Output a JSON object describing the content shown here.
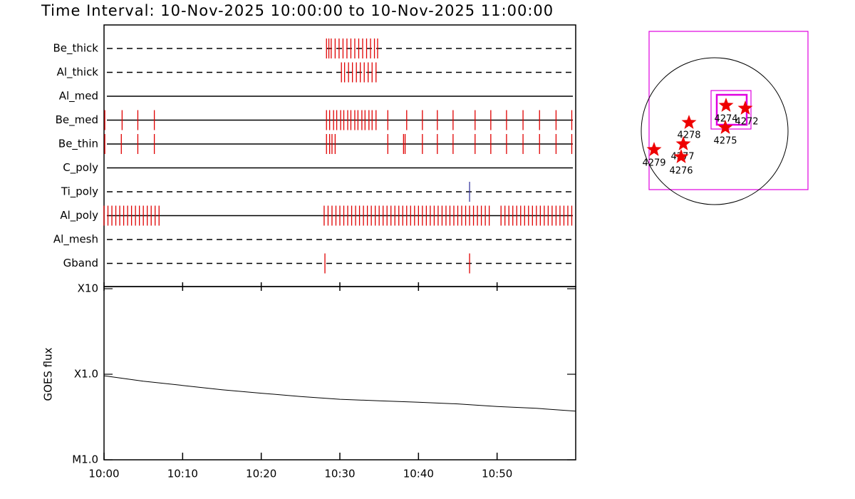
{
  "chart_data": [
    {
      "type": "timeline",
      "title": "Time Interval: 10-Nov-2025 10:00:00 to 10-Nov-2025 11:00:00",
      "xlim": [
        0,
        60
      ],
      "rows": [
        {
          "name": "Be_thick",
          "style": "dashed",
          "color": "#e00000",
          "events": [
            28.3,
            28.6,
            28.9,
            29.4,
            29.9,
            30.4,
            30.9,
            31.4,
            31.9,
            32.4,
            32.9,
            33.4,
            33.9,
            34.4,
            34.8
          ]
        },
        {
          "name": "Al_thick",
          "style": "dashed",
          "color": "#e00000",
          "events": [
            30.2,
            30.6,
            31.1,
            31.6,
            32.1,
            32.6,
            33.1,
            33.6,
            34.1,
            34.6
          ]
        },
        {
          "name": "Al_med",
          "style": "solid",
          "color": "#e00000",
          "events": []
        },
        {
          "name": "Be_med",
          "style": "solid",
          "color": "#e00000",
          "events": [
            0.1,
            2.3,
            4.3,
            6.4,
            28.3,
            28.7,
            29.2,
            29.6,
            30.1,
            30.5,
            31.0,
            31.4,
            31.9,
            32.3,
            32.8,
            33.2,
            33.7,
            34.1,
            34.6,
            36.1,
            38.5,
            40.5,
            42.4,
            44.4,
            47.2,
            49.2,
            51.2,
            53.3,
            55.4,
            57.5,
            59.5
          ]
        },
        {
          "name": "Be_thin",
          "style": "solid",
          "color": "#e00000",
          "events": [
            0.1,
            2.2,
            4.3,
            6.4,
            28.3,
            28.7,
            29.0,
            29.4,
            36.1,
            38.1,
            38.3,
            40.5,
            42.4,
            44.4,
            47.2,
            49.2,
            51.2,
            53.3,
            55.4,
            57.5,
            59.5
          ]
        },
        {
          "name": "C_poly",
          "style": "solid",
          "color": "#e00000",
          "events": []
        },
        {
          "name": "Ti_poly",
          "style": "dashed",
          "color": "#3a3aa0",
          "events": [
            46.5
          ]
        },
        {
          "name": "Al_poly",
          "style": "solid",
          "color": "#e00000",
          "events": [
            0,
            0.5,
            1,
            1.5,
            2,
            2.5,
            3,
            3.5,
            4,
            4.5,
            5,
            5.5,
            6,
            6.5,
            7,
            28,
            28.5,
            29,
            29.5,
            30,
            30.5,
            31,
            31.5,
            32,
            32.5,
            33,
            33.5,
            34,
            34.5,
            35,
            35.5,
            36,
            36.5,
            37,
            37.5,
            38,
            38.5,
            39,
            39.5,
            40,
            40.5,
            41,
            41.5,
            42,
            42.5,
            43,
            43.5,
            44,
            44.5,
            45,
            45.5,
            46,
            46.5,
            47,
            47.5,
            48,
            48.5,
            49,
            50.5,
            51,
            51.5,
            52,
            52.5,
            53,
            53.5,
            54,
            54.5,
            55,
            55.5,
            56,
            56.5,
            57,
            57.5,
            58,
            58.5,
            59,
            59.5
          ]
        },
        {
          "name": "Al_mesh",
          "style": "dashed",
          "color": "#e00000",
          "events": []
        },
        {
          "name": "Gband",
          "style": "dashed",
          "color": "#e00000",
          "events": [
            28.1,
            46.5
          ]
        }
      ]
    },
    {
      "type": "line",
      "ylabel": "GOES flux",
      "log": true,
      "color": "#000000",
      "xlim": [
        0,
        60
      ],
      "xticks": [
        {
          "value": 0,
          "label": "10:00"
        },
        {
          "value": 10,
          "label": "10:10"
        },
        {
          "value": 20,
          "label": "10:20"
        },
        {
          "value": 30,
          "label": "10:30"
        },
        {
          "value": 40,
          "label": "10:40"
        },
        {
          "value": 50,
          "label": "10:50"
        }
      ],
      "ylim": [
        1e-05,
        0.001
      ],
      "yticks": [
        {
          "value": 1e-05,
          "label": "M1.0"
        },
        {
          "value": 0.0001,
          "label": "X1.0"
        },
        {
          "value": 0.001,
          "label": "X10"
        }
      ],
      "x": [
        0,
        5,
        10,
        15,
        20,
        25,
        30,
        35,
        40,
        45,
        50,
        55,
        60
      ],
      "values": [
        9.6e-05,
        8.3e-05,
        7.4e-05,
        6.6e-05,
        6e-05,
        5.5e-05,
        5.1e-05,
        4.9e-05,
        4.7e-05,
        4.5e-05,
        4.2e-05,
        4e-05,
        3.7e-05
      ]
    }
  ],
  "map": {
    "regions": [
      "4274",
      "4272",
      "4275",
      "4278",
      "4277",
      "4276",
      "4279"
    ]
  }
}
